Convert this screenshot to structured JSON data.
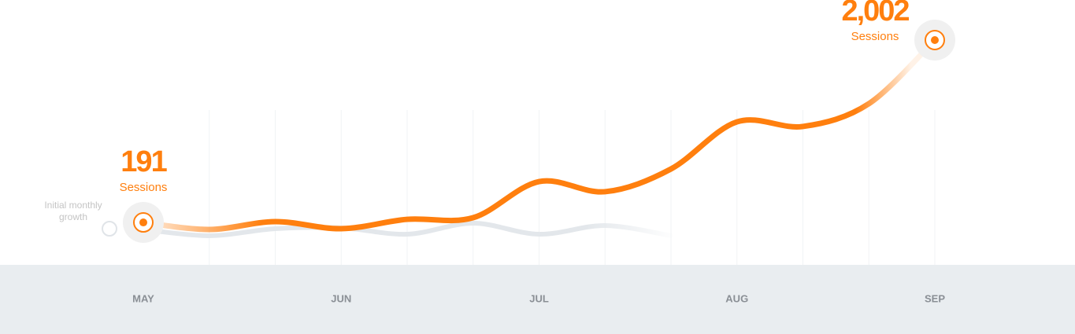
{
  "chart_data": {
    "type": "line",
    "categories": [
      "MAY",
      null,
      null,
      "JUN",
      null,
      null,
      "JUL",
      null,
      null,
      "AUG",
      null,
      null,
      "SEP"
    ],
    "series": [
      {
        "color": "#ff7f0e",
        "values": [
          191,
          121,
          199,
          129,
          222,
          238,
          597,
          496,
          722,
          1190,
          1144,
          1370,
          2002
        ],
        "value_labels": [
          "191",
          null,
          null,
          null,
          null,
          null,
          null,
          null,
          null,
          null,
          null,
          null,
          "2,002"
        ]
      },
      {
        "color": "#e3e7eb",
        "values": [
          121,
          59,
          129,
          137,
          74,
          183,
          74,
          160,
          59,
          null,
          null,
          null,
          null
        ]
      }
    ],
    "value_caption": "Sessions",
    "annotation": "Initial monthly growth",
    "ylim": [
      0,
      2400
    ],
    "grid": true
  }
}
